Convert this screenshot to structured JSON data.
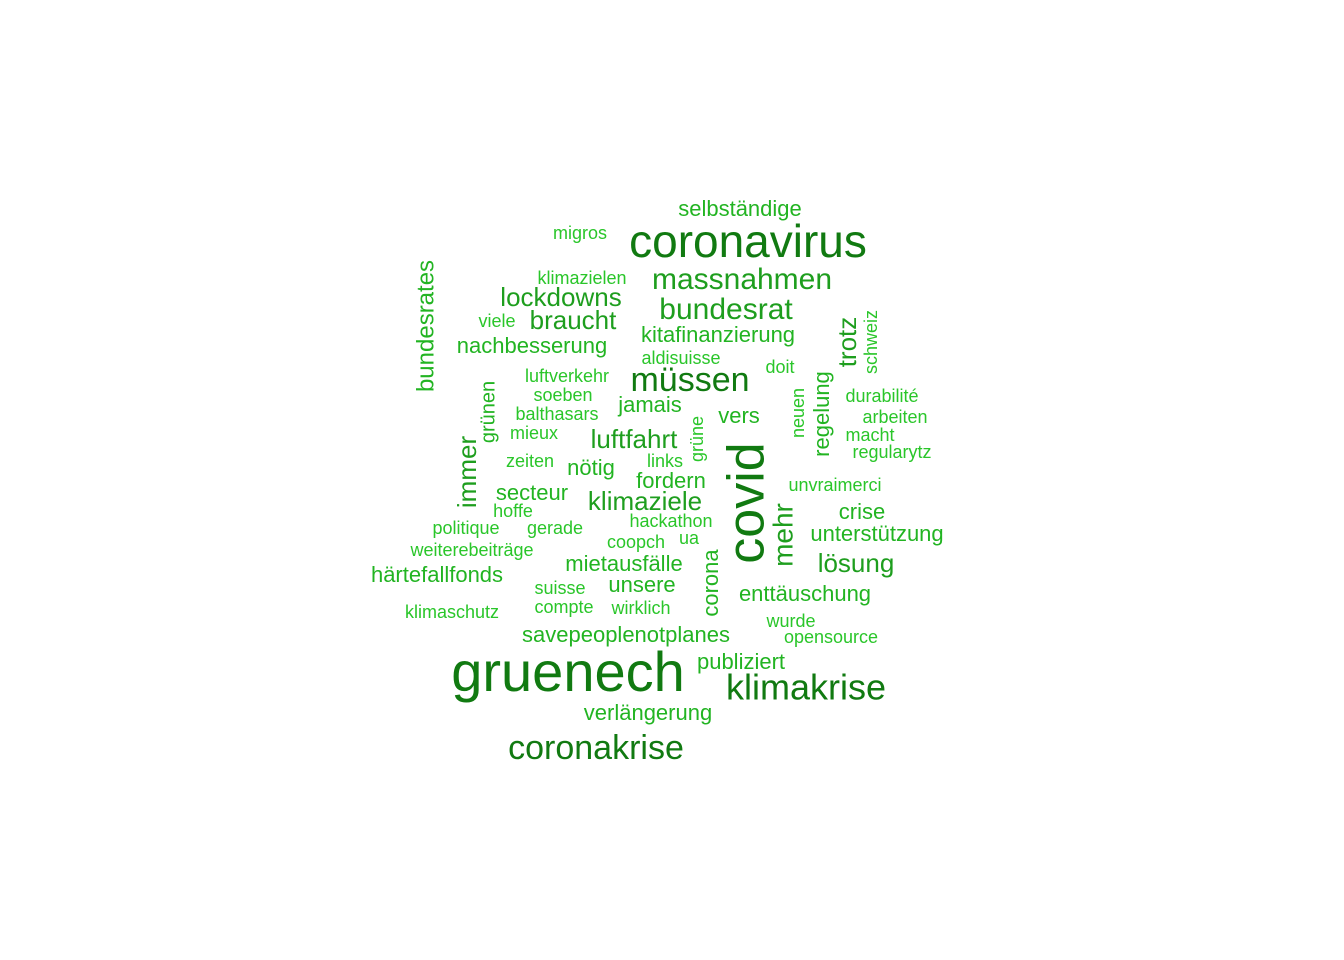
{
  "colors": {
    "tier1": "#117a11",
    "tier2": "#1e9e1e",
    "tier3": "#22b422",
    "tier4": "#2ac62a"
  },
  "words": [
    {
      "text": "gruenech",
      "tier": 1
    },
    {
      "text": "covid",
      "tier": 1
    },
    {
      "text": "coronavirus",
      "tier": 1
    },
    {
      "text": "klimakrise",
      "tier": 1
    },
    {
      "text": "coronakrise",
      "tier": 1
    },
    {
      "text": "müssen",
      "tier": 1
    },
    {
      "text": "massnahmen",
      "tier": 2
    },
    {
      "text": "bundesrat",
      "tier": 2
    },
    {
      "text": "lockdowns",
      "tier": 2
    },
    {
      "text": "braucht",
      "tier": 2
    },
    {
      "text": "mehr",
      "tier": 2
    },
    {
      "text": "klimaziele",
      "tier": 2
    },
    {
      "text": "luftfahrt",
      "tier": 2
    },
    {
      "text": "lösung",
      "tier": 2
    },
    {
      "text": "trotz",
      "tier": 2
    },
    {
      "text": "immer",
      "tier": 2
    },
    {
      "text": "bundesrates",
      "tier": 3
    },
    {
      "text": "selbständige",
      "tier": 3
    },
    {
      "text": "kitafinanzierung",
      "tier": 3
    },
    {
      "text": "nachbesserung",
      "tier": 3
    },
    {
      "text": "jamais",
      "tier": 3
    },
    {
      "text": "vers",
      "tier": 3
    },
    {
      "text": "regelung",
      "tier": 3
    },
    {
      "text": "nötig",
      "tier": 3
    },
    {
      "text": "fordern",
      "tier": 3
    },
    {
      "text": "secteur",
      "tier": 3
    },
    {
      "text": "crise",
      "tier": 3
    },
    {
      "text": "unterstützung",
      "tier": 3
    },
    {
      "text": "härtefallfonds",
      "tier": 3
    },
    {
      "text": "mietausfälle",
      "tier": 3
    },
    {
      "text": "unsere",
      "tier": 3
    },
    {
      "text": "corona",
      "tier": 3
    },
    {
      "text": "enttäuschung",
      "tier": 3
    },
    {
      "text": "savepeoplenotplanes",
      "tier": 3
    },
    {
      "text": "publiziert",
      "tier": 3
    },
    {
      "text": "verlängerung",
      "tier": 3
    },
    {
      "text": "grünen",
      "tier": 3
    },
    {
      "text": "migros",
      "tier": 4
    },
    {
      "text": "klimazielen",
      "tier": 4
    },
    {
      "text": "viele",
      "tier": 4
    },
    {
      "text": "aldisuisse",
      "tier": 4
    },
    {
      "text": "schweiz",
      "tier": 4
    },
    {
      "text": "luftverkehr",
      "tier": 4
    },
    {
      "text": "doit",
      "tier": 4
    },
    {
      "text": "soeben",
      "tier": 4
    },
    {
      "text": "balthasars",
      "tier": 4
    },
    {
      "text": "neuen",
      "tier": 4
    },
    {
      "text": "durabilité",
      "tier": 4
    },
    {
      "text": "arbeiten",
      "tier": 4
    },
    {
      "text": "mieux",
      "tier": 4
    },
    {
      "text": "grüne",
      "tier": 4
    },
    {
      "text": "macht",
      "tier": 4
    },
    {
      "text": "zeiten",
      "tier": 4
    },
    {
      "text": "links",
      "tier": 4
    },
    {
      "text": "regularytz",
      "tier": 4
    },
    {
      "text": "unvraimerci",
      "tier": 4
    },
    {
      "text": "hoffe",
      "tier": 4
    },
    {
      "text": "politique",
      "tier": 4
    },
    {
      "text": "gerade",
      "tier": 4
    },
    {
      "text": "hackathon",
      "tier": 4
    },
    {
      "text": "coopch",
      "tier": 4
    },
    {
      "text": "ua",
      "tier": 4
    },
    {
      "text": "weiterebeiträge",
      "tier": 4
    },
    {
      "text": "suisse",
      "tier": 4
    },
    {
      "text": "compte",
      "tier": 4
    },
    {
      "text": "wirklich",
      "tier": 4
    },
    {
      "text": "klimaschutz",
      "tier": 4
    },
    {
      "text": "wurde",
      "tier": 4
    },
    {
      "text": "opensource",
      "tier": 4
    }
  ]
}
